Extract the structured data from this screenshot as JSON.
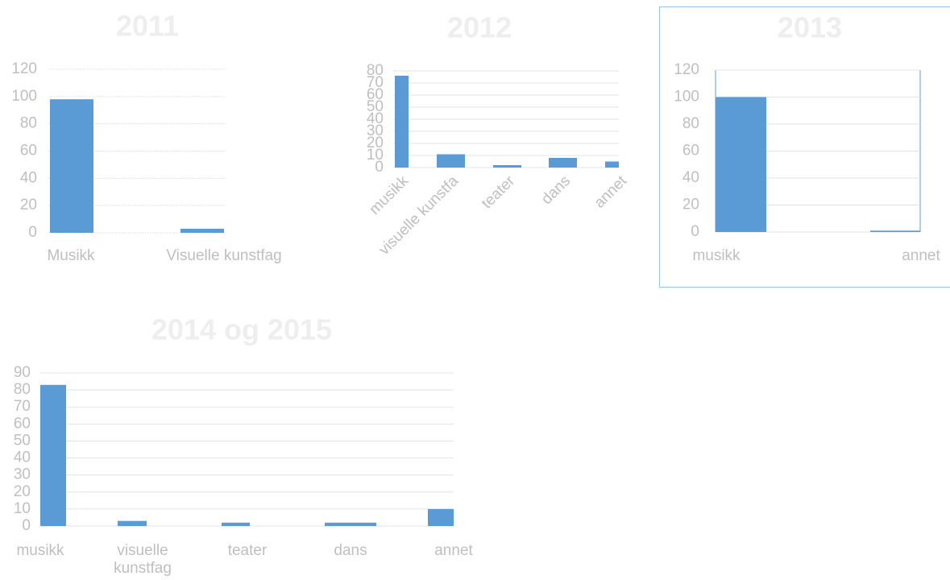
{
  "chart_data": [
    {
      "type": "bar",
      "title": "2011",
      "categories": [
        "Musikk",
        "Visuelle kunstfag"
      ],
      "values": [
        98,
        3
      ],
      "color": "#5b9bd5",
      "ylim": [
        0,
        120
      ],
      "yticks": [
        0,
        20,
        40,
        60,
        80,
        100,
        120
      ],
      "grid": true
    },
    {
      "type": "bar",
      "title": "2012",
      "categories": [
        "musikk",
        "visuelle kunstfa",
        "teater",
        "dans",
        "annet"
      ],
      "values": [
        76,
        11,
        2,
        8,
        5
      ],
      "color": "#5b9bd5",
      "ylim": [
        0,
        80
      ],
      "yticks": [
        0,
        10,
        20,
        30,
        40,
        50,
        60,
        70,
        80
      ],
      "grid": true
    },
    {
      "type": "bar",
      "title": "2013",
      "categories": [
        "musikk",
        "annet"
      ],
      "values": [
        100,
        1
      ],
      "color": "#5b9bd5",
      "ylim": [
        0,
        120
      ],
      "yticks": [
        0,
        20,
        40,
        60,
        80,
        100,
        120
      ],
      "grid": true
    },
    {
      "type": "bar",
      "title": "2014 og 2015",
      "categories": [
        "musikk",
        "visuelle kunstfag",
        "teater",
        "dans",
        "annet"
      ],
      "values": [
        83,
        3,
        2,
        2,
        10
      ],
      "color": "#5b9bd5",
      "ylim": [
        0,
        90
      ],
      "yticks": [
        0,
        10,
        20,
        30,
        40,
        50,
        60,
        70,
        80,
        90
      ],
      "grid": true
    }
  ]
}
